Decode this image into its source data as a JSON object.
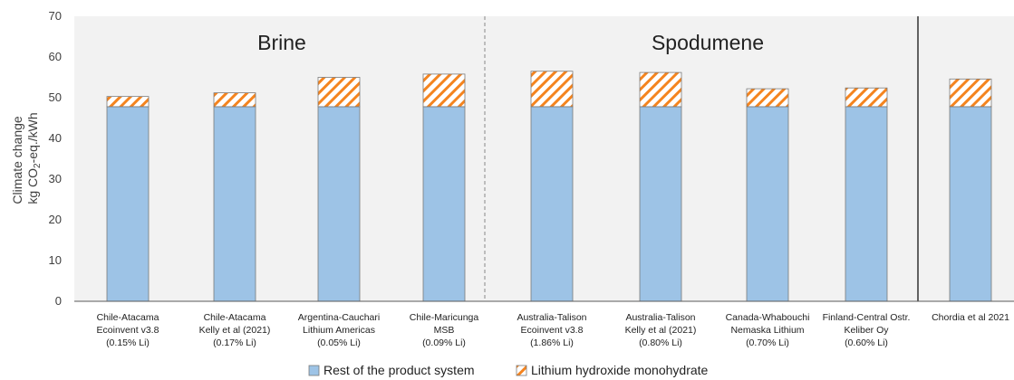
{
  "chart_data": {
    "type": "bar",
    "stacked": true,
    "categories": [
      [
        "Chile-Atacama",
        "Ecoinvent v3.8",
        "(0.15% Li)"
      ],
      [
        "Chile-Atacama",
        "Kelly et al (2021)",
        "(0.17% Li)"
      ],
      [
        "Argentina-Cauchari",
        "Lithium Americas",
        "(0.05% Li)"
      ],
      [
        "Chile-Maricunga",
        "MSB",
        "(0.09% Li)"
      ],
      [
        "Australia-Talison",
        "Ecoinvent v3.8",
        "(1.86% Li)"
      ],
      [
        "Australia-Talison",
        "Kelly et al (2021)",
        "(0.80% Li)"
      ],
      [
        "Canada-Whabouchi",
        "Nemaska Lithium",
        "(0.70% Li)"
      ],
      [
        "Finland-Central Ostr.",
        "Keliber Oy",
        "(0.60% Li)"
      ],
      [
        "Chordia et al 2021"
      ]
    ],
    "series": [
      {
        "name": "Rest of the product system",
        "color": "#9dc3e6",
        "values": [
          47.8,
          47.8,
          47.8,
          47.8,
          47.8,
          47.8,
          47.8,
          47.8,
          47.8
        ]
      },
      {
        "name": "Lithium hydroxide monohydrate",
        "color": "#f4841f",
        "pattern": "diagonal-hatch",
        "values": [
          2.5,
          3.4,
          7.2,
          8.0,
          8.7,
          8.4,
          4.4,
          4.6,
          6.8
        ]
      }
    ],
    "groups": [
      {
        "label": "Brine",
        "categories": [
          0,
          1,
          2,
          3
        ]
      },
      {
        "label": "Spodumene",
        "categories": [
          4,
          5,
          6,
          7
        ]
      }
    ],
    "ylabel": [
      "Climate change",
      "kg CO",
      "2",
      "-eq./kWh"
    ],
    "ylim": [
      0,
      70
    ],
    "yticks": [
      0,
      10,
      20,
      30,
      40,
      50,
      60,
      70
    ],
    "legend_position": "bottom-center",
    "grid": false
  }
}
